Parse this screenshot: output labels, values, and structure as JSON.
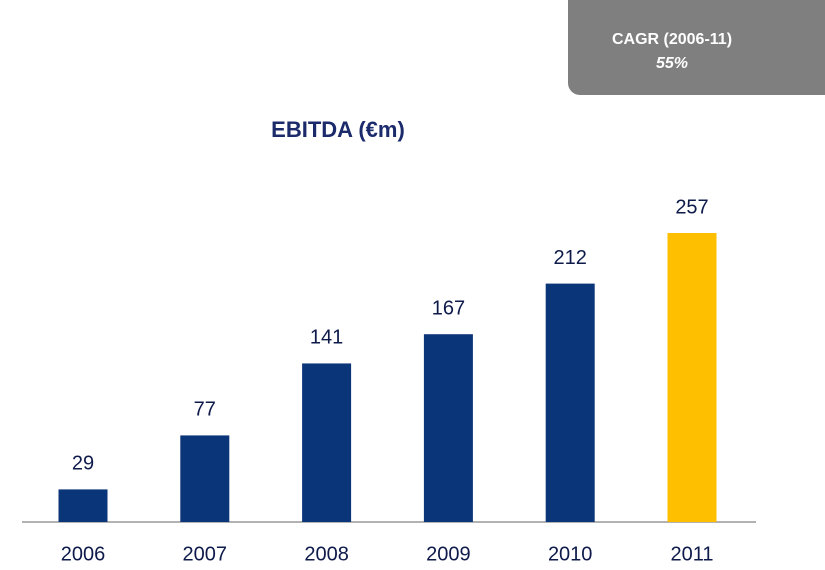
{
  "chart_data": {
    "type": "bar",
    "title": "EBITDA (€m)",
    "categories": [
      "2006",
      "2007",
      "2008",
      "2009",
      "2010",
      "2011"
    ],
    "values": [
      29,
      77,
      141,
      167,
      212,
      257
    ],
    "colors": [
      "#0b3579",
      "#0b3579",
      "#0b3579",
      "#0b3579",
      "#0b3579",
      "#fdbf00"
    ],
    "annotation": {
      "title": "CAGR (2006-11)",
      "text": "55%"
    }
  }
}
